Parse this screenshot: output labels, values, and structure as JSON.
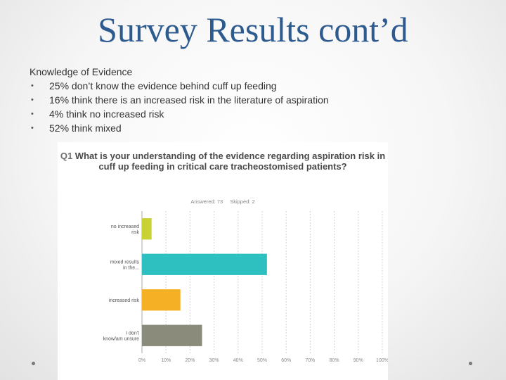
{
  "slide": {
    "title": "Survey Results cont’d",
    "heading": "Knowledge of Evidence",
    "bullets": [
      "25% don’t know the evidence behind cuff up feeding",
      "16% think there is an increased risk in the literature of aspiration",
      "4% think no increased risk",
      "52% think mixed"
    ]
  },
  "survey": {
    "question_number": "Q1",
    "question_text": "What is your understanding of the evidence regarding aspiration risk in cuff up feeding in critical care tracheostomised patients?",
    "answered": "Answered: 73",
    "skipped": "Skipped: 2"
  },
  "chart_data": {
    "type": "bar",
    "orientation": "horizontal",
    "title": "What is your understanding of the evidence regarding aspiration risk in cuff up feeding in critical care tracheostomised patients?",
    "categories": [
      [
        "no increased",
        "risk"
      ],
      [
        "mixed results",
        "in the..."
      ],
      [
        "increased risk"
      ],
      [
        "I don't",
        "know/am unsure"
      ]
    ],
    "values": [
      4,
      52,
      16,
      25
    ],
    "colors": [
      "#c8d234",
      "#2ebfc1",
      "#f5b025",
      "#8b8b7c"
    ],
    "xlim": [
      0,
      100
    ],
    "x_ticks": [
      0,
      10,
      20,
      30,
      40,
      50,
      60,
      70,
      80,
      90,
      100
    ],
    "x_tick_format": "percent",
    "grid": "vertical-dashed"
  }
}
